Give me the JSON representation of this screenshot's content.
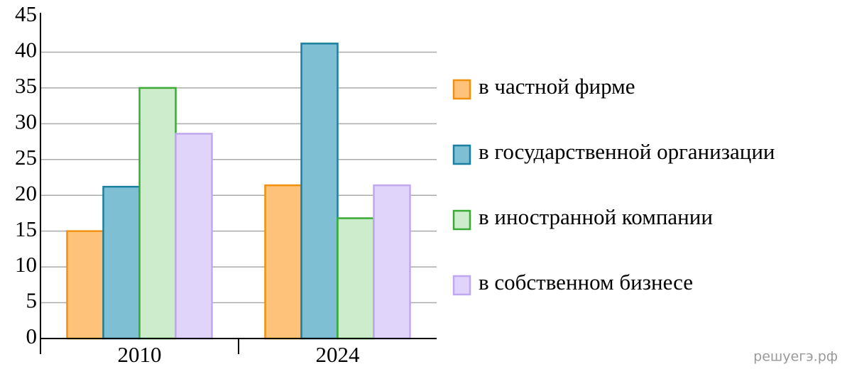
{
  "chart_data": {
    "type": "bar",
    "categories": [
      "2010",
      "2024"
    ],
    "series": [
      {
        "name": "в частной фирме",
        "color": "#ffc27a",
        "edge": "#f0900f",
        "values": [
          15,
          21.4
        ]
      },
      {
        "name": "в государственной организации",
        "color": "#7fbfd4",
        "edge": "#1a7fa0",
        "values": [
          21.2,
          41.2
        ]
      },
      {
        "name": "в иностранной компании",
        "color": "#cdeccb",
        "edge": "#3aaa35",
        "values": [
          35,
          16.8
        ]
      },
      {
        "name": "в собственном бизнесе",
        "color": "#e0d4fb",
        "edge": "#c0a8f0",
        "values": [
          28.6,
          21.4
        ]
      }
    ],
    "ylim": [
      0,
      45
    ],
    "yticks": [
      0,
      5,
      10,
      15,
      20,
      25,
      30,
      35,
      40,
      45
    ],
    "grid": true,
    "legend": "right",
    "watermark": "решуегэ.рф"
  }
}
